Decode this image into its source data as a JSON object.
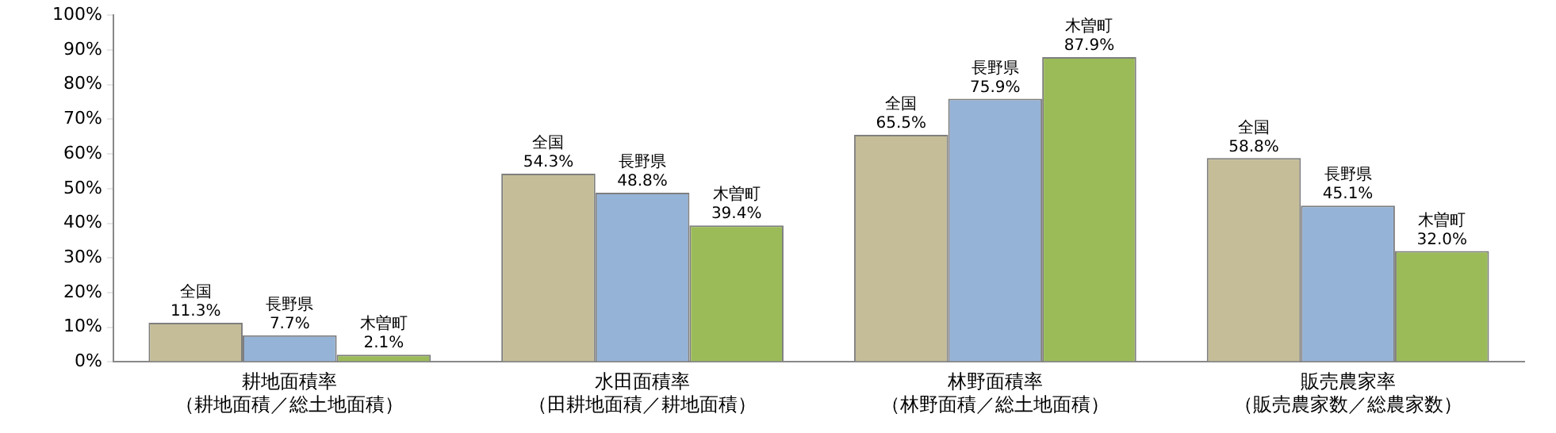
{
  "chart_data": {
    "type": "bar",
    "categories": [
      "耕地面積率（耕地面積／総土地面積）",
      "水田面積率（田耕地面積／耕地面積）",
      "林野面積率（林野面積／総土地面積）",
      "販売農家率（販売農家数／総農家数）"
    ],
    "series": [
      {
        "name": "全国",
        "color": "#c4bd97",
        "values": [
          11.3,
          54.3,
          65.5,
          58.8
        ],
        "value_labels": [
          "11.3%",
          "54.3%",
          "65.5%",
          "58.8%"
        ]
      },
      {
        "name": "長野県",
        "color": "#95b3d7",
        "values": [
          7.7,
          48.8,
          75.9,
          45.1
        ],
        "value_labels": [
          "7.7%",
          "48.8%",
          "75.9%",
          "45.1%"
        ]
      },
      {
        "name": "木曽町",
        "color": "#9bbb59",
        "values": [
          2.1,
          39.4,
          87.9,
          32.0
        ],
        "value_labels": [
          "2.1%",
          "39.4%",
          "87.9%",
          "32.0%"
        ]
      }
    ],
    "ylim": [
      0,
      100
    ],
    "yticks": [
      {
        "value": 0,
        "label": "0%"
      },
      {
        "value": 10,
        "label": "10%"
      },
      {
        "value": 20,
        "label": "20%"
      },
      {
        "value": 30,
        "label": "30%"
      },
      {
        "value": 40,
        "label": "40%"
      },
      {
        "value": 50,
        "label": "50%"
      },
      {
        "value": 60,
        "label": "60%"
      },
      {
        "value": 70,
        "label": "70%"
      },
      {
        "value": 80,
        "label": "80%"
      },
      {
        "value": 90,
        "label": "90%"
      },
      {
        "value": 100,
        "label": "100%"
      }
    ],
    "grid": false,
    "legend": false
  }
}
